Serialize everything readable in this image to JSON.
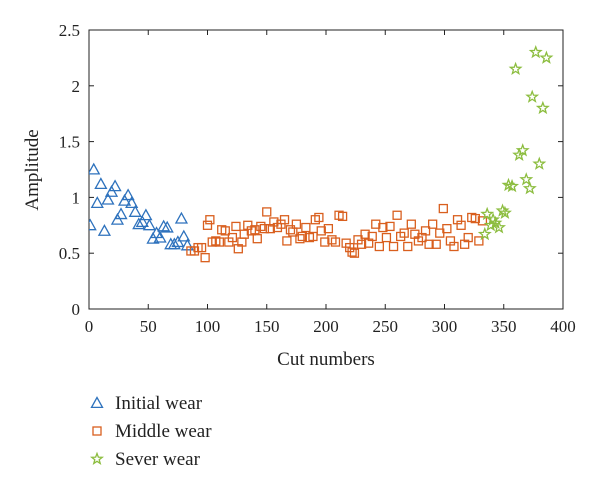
{
  "chart_data": {
    "type": "scatter",
    "title": "",
    "xlabel": "Cut numbers",
    "ylabel": "Amplitude",
    "xlim": [
      0,
      400
    ],
    "ylim": [
      0,
      2.5
    ],
    "xticks": [
      0,
      50,
      100,
      150,
      200,
      250,
      300,
      350,
      400
    ],
    "yticks": [
      0,
      0.5,
      1,
      1.5,
      2,
      2.5
    ],
    "xtick_labels": [
      "0",
      "50",
      "100",
      "150",
      "200",
      "250",
      "300",
      "350",
      "400"
    ],
    "ytick_labels": [
      "0",
      "0.5",
      "1",
      "1.5",
      "2",
      "2.5"
    ],
    "grid": false,
    "legend_position": "below",
    "series": [
      {
        "name": "Initial wear",
        "marker": "triangle",
        "color": "#2e72bd",
        "points": [
          [
            1,
            0.75
          ],
          [
            4,
            1.25
          ],
          [
            7,
            0.95
          ],
          [
            10,
            1.12
          ],
          [
            13,
            0.7
          ],
          [
            16,
            0.98
          ],
          [
            19,
            1.05
          ],
          [
            22,
            1.1
          ],
          [
            24,
            0.8
          ],
          [
            27,
            0.85
          ],
          [
            30,
            0.97
          ],
          [
            33,
            1.02
          ],
          [
            36,
            0.95
          ],
          [
            39,
            0.87
          ],
          [
            42,
            0.76
          ],
          [
            45,
            0.78
          ],
          [
            48,
            0.84
          ],
          [
            51,
            0.75
          ],
          [
            54,
            0.63
          ],
          [
            57,
            0.68
          ],
          [
            60,
            0.64
          ],
          [
            63,
            0.74
          ],
          [
            66,
            0.73
          ],
          [
            69,
            0.58
          ],
          [
            72,
            0.58
          ],
          [
            75,
            0.6
          ],
          [
            78,
            0.81
          ],
          [
            80,
            0.65
          ],
          [
            83,
            0.57
          ]
        ]
      },
      {
        "name": "Middle wear",
        "marker": "square",
        "color": "#d95f1e",
        "points": [
          [
            86,
            0.52
          ],
          [
            89,
            0.52
          ],
          [
            92,
            0.55
          ],
          [
            95,
            0.55
          ],
          [
            98,
            0.46
          ],
          [
            100,
            0.75
          ],
          [
            102,
            0.8
          ],
          [
            104,
            0.6
          ],
          [
            107,
            0.61
          ],
          [
            110,
            0.6
          ],
          [
            112,
            0.71
          ],
          [
            115,
            0.7
          ],
          [
            118,
            0.6
          ],
          [
            121,
            0.64
          ],
          [
            124,
            0.74
          ],
          [
            126,
            0.54
          ],
          [
            129,
            0.6
          ],
          [
            131,
            0.67
          ],
          [
            134,
            0.75
          ],
          [
            137,
            0.7
          ],
          [
            140,
            0.71
          ],
          [
            142,
            0.63
          ],
          [
            145,
            0.74
          ],
          [
            148,
            0.72
          ],
          [
            150,
            0.87
          ],
          [
            153,
            0.72
          ],
          [
            156,
            0.78
          ],
          [
            159,
            0.73
          ],
          [
            162,
            0.76
          ],
          [
            165,
            0.8
          ],
          [
            167,
            0.61
          ],
          [
            170,
            0.71
          ],
          [
            172,
            0.69
          ],
          [
            175,
            0.76
          ],
          [
            178,
            0.63
          ],
          [
            180,
            0.65
          ],
          [
            183,
            0.73
          ],
          [
            186,
            0.64
          ],
          [
            189,
            0.65
          ],
          [
            191,
            0.8
          ],
          [
            194,
            0.82
          ],
          [
            196,
            0.7
          ],
          [
            199,
            0.6
          ],
          [
            202,
            0.72
          ],
          [
            205,
            0.62
          ],
          [
            208,
            0.6
          ],
          [
            211,
            0.84
          ],
          [
            214,
            0.83
          ],
          [
            217,
            0.59
          ],
          [
            220,
            0.55
          ],
          [
            222,
            0.51
          ],
          [
            224,
            0.5
          ],
          [
            227,
            0.62
          ],
          [
            230,
            0.58
          ],
          [
            233,
            0.67
          ],
          [
            236,
            0.59
          ],
          [
            239,
            0.65
          ],
          [
            242,
            0.76
          ],
          [
            245,
            0.56
          ],
          [
            248,
            0.73
          ],
          [
            251,
            0.64
          ],
          [
            254,
            0.74
          ],
          [
            257,
            0.56
          ],
          [
            260,
            0.84
          ],
          [
            263,
            0.65
          ],
          [
            266,
            0.68
          ],
          [
            269,
            0.56
          ],
          [
            272,
            0.76
          ],
          [
            275,
            0.67
          ],
          [
            278,
            0.61
          ],
          [
            281,
            0.64
          ],
          [
            284,
            0.7
          ],
          [
            287,
            0.58
          ],
          [
            290,
            0.76
          ],
          [
            293,
            0.58
          ],
          [
            296,
            0.68
          ],
          [
            299,
            0.9
          ],
          [
            302,
            0.72
          ],
          [
            305,
            0.61
          ],
          [
            308,
            0.56
          ],
          [
            311,
            0.8
          ],
          [
            314,
            0.75
          ],
          [
            317,
            0.58
          ],
          [
            320,
            0.64
          ],
          [
            323,
            0.82
          ],
          [
            326,
            0.81
          ],
          [
            329,
            0.61
          ],
          [
            332,
            0.79
          ]
        ]
      },
      {
        "name": "Sever wear",
        "marker": "star",
        "color": "#8cbd3f",
        "points": [
          [
            334,
            0.67
          ],
          [
            336,
            0.85
          ],
          [
            339,
            0.75
          ],
          [
            341,
            0.8
          ],
          [
            343,
            0.77
          ],
          [
            346,
            0.73
          ],
          [
            349,
            0.88
          ],
          [
            351,
            0.86
          ],
          [
            354,
            1.11
          ],
          [
            357,
            1.1
          ],
          [
            360,
            2.15
          ],
          [
            363,
            1.38
          ],
          [
            366,
            1.42
          ],
          [
            369,
            1.16
          ],
          [
            372,
            1.08
          ],
          [
            374,
            1.9
          ],
          [
            377,
            2.3
          ],
          [
            380,
            1.3
          ],
          [
            383,
            1.8
          ],
          [
            386,
            2.25
          ]
        ]
      }
    ]
  }
}
